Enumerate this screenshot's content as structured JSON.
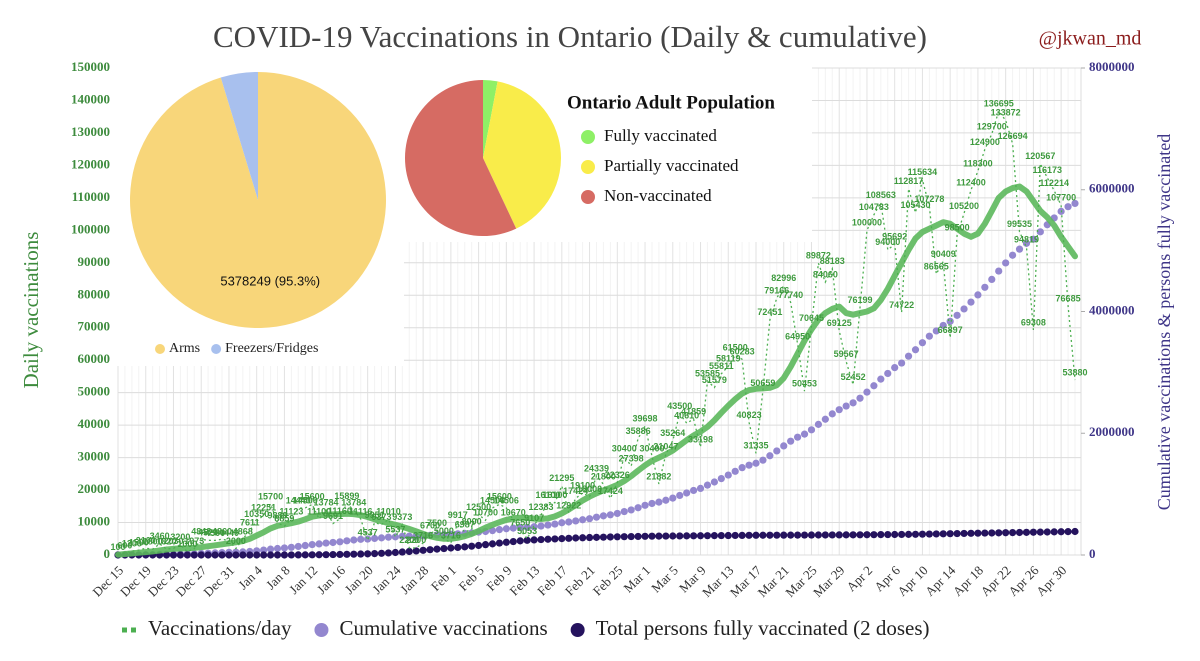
{
  "chart_data": [
    {
      "type": "line",
      "title": "COVID-19 Vaccinations in Ontario (Daily & cumulative)",
      "annotation": "@jkwan_md",
      "ylabel": "Daily vaccinations",
      "y2label": "Cumulative vaccinations & persons fully vaccinated",
      "categories": [
        "Dec 15",
        null,
        null,
        null,
        "Dec 19",
        null,
        null,
        null,
        "Dec 23",
        null,
        null,
        null,
        "Dec 27",
        null,
        null,
        null,
        "Dec 31",
        null,
        null,
        null,
        "Jan 4",
        null,
        null,
        null,
        "Jan 8",
        null,
        null,
        null,
        "Jan 12",
        null,
        null,
        null,
        "Jan 16",
        null,
        null,
        null,
        "Jan 20",
        null,
        null,
        null,
        "Jan 24",
        null,
        null,
        null,
        "Jan 28",
        null,
        null,
        null,
        "Feb 1",
        null,
        null,
        null,
        "Feb 5",
        null,
        null,
        null,
        "Feb 9",
        null,
        null,
        null,
        "Feb 13",
        null,
        null,
        null,
        "Feb 17",
        null,
        null,
        null,
        "Feb 21",
        null,
        null,
        null,
        "Feb 25",
        null,
        null,
        null,
        "Mar 1",
        null,
        null,
        null,
        "Mar 5",
        null,
        null,
        null,
        "Mar 9",
        null,
        null,
        null,
        "Mar 13",
        null,
        null,
        null,
        "Mar 17",
        null,
        null,
        null,
        "Mar 21",
        null,
        null,
        null,
        "Mar 25",
        null,
        null,
        null,
        "Mar 29",
        null,
        null,
        null,
        "Apr 2",
        null,
        null,
        null,
        "Apr 6",
        null,
        null,
        null,
        "Apr 10",
        null,
        null,
        null,
        "Apr 14",
        null,
        null,
        null,
        "Apr 18",
        null,
        null,
        null,
        "Apr 22",
        null,
        null,
        null,
        "Apr 26",
        null,
        null,
        null,
        "Apr 30",
        null,
        null
      ],
      "series": [
        {
          "name": "Vaccinations/day",
          "color": "#4caf50",
          "mark": "dashed-line",
          "data_labels": true,
          "values": [
            100,
            600,
            1200,
            1500,
            2100,
            1800,
            3460,
            1820,
            2030,
            3200,
            1000,
            1973,
            4848,
            4520,
            4500,
            4860,
            4440,
            2000,
            4868,
            7611,
            10350,
            12251,
            15700,
            9889,
            8859,
            11123,
            14440,
            14500,
            15600,
            11100,
            13784,
            9691,
            11160,
            15899,
            13784,
            11116,
            4537,
            9951,
            9373,
            11010,
            5537,
            9373,
            2200,
            2200,
            3716,
            6700,
            7500,
            5000,
            3716,
            9917,
            6987,
            8000,
            12500,
            10700,
            14506,
            15600,
            14506,
            10670,
            7650,
            5053,
            9107,
            12383,
            16100,
            16100,
            21295,
            12922,
            17424,
            19100,
            18000,
            24339,
            21800,
            17424,
            22326,
            30400,
            27398,
            35886,
            39698,
            30400,
            21882,
            31047,
            35264,
            43500,
            40610,
            41859,
            33198,
            53585,
            51579,
            55811,
            58119,
            61500,
            60283,
            40823,
            31335,
            50659,
            72451,
            79166,
            82996,
            77740,
            64950,
            50453,
            70645,
            89872,
            84060,
            88183,
            69125,
            59567,
            52452,
            76199,
            100000,
            104783,
            108563,
            94000,
            95692,
            74722,
            112817,
            105430,
            115634,
            107278,
            86565,
            90409,
            66897,
            98500,
            105200,
            112400,
            118300,
            124900,
            129700,
            136695,
            133872,
            126694,
            99535,
            94819,
            69308,
            120567,
            116173,
            112214,
            107700,
            76685,
            53880
          ]
        },
        {
          "color": "#5cb85c",
          "mark": "thick-line",
          "values": [
            100,
            300,
            500,
            700,
            900,
            1100,
            1400,
            1700,
            1900,
            2000,
            2100,
            2200,
            2400,
            2700,
            3000,
            3300,
            3600,
            3900,
            4300,
            5000,
            6000,
            7000,
            8200,
            9000,
            9400,
            9800,
            10300,
            11000,
            11800,
            12200,
            12400,
            12500,
            12600,
            12700,
            12600,
            12300,
            11700,
            11000,
            10400,
            9800,
            9300,
            8700,
            8000,
            7300,
            6500,
            5800,
            5300,
            5000,
            5000,
            5300,
            5800,
            6500,
            7400,
            8400,
            9300,
            10100,
            10800,
            11300,
            11500,
            11400,
            11200,
            11100,
            11300,
            11900,
            12800,
            14000,
            15400,
            16800,
            18000,
            19000,
            19900,
            20700,
            21600,
            22800,
            24300,
            26000,
            27600,
            29000,
            30000,
            31000,
            32200,
            33800,
            35400,
            36800,
            38000,
            39500,
            41500,
            43800,
            46000,
            48000,
            49700,
            50800,
            51200,
            51300,
            51500,
            52300,
            54500,
            58000,
            62000,
            66000,
            69500,
            72500,
            74500,
            75800,
            76500,
            74500,
            74000,
            74500,
            75000,
            76000,
            78500,
            82000,
            86000,
            90000,
            94000,
            97500,
            99500,
            100500,
            101500,
            102500,
            102000,
            100500,
            99000,
            98000,
            99000,
            102000,
            106000,
            110000,
            112000,
            113000,
            113500,
            112000,
            109000,
            106000,
            104000,
            101500,
            98000,
            95000,
            92000
          ]
        },
        {
          "name": "Cumulative vaccinations",
          "color": "#9387cf",
          "mark": "dots",
          "axis": "y2",
          "values": [
            100,
            700,
            1900,
            3400,
            5500,
            7300,
            10800,
            12600,
            14600,
            17800,
            18800,
            20800,
            25600,
            30100,
            34600,
            39500,
            43900,
            45900,
            50800,
            58400,
            68700,
            81000,
            96700,
            106600,
            115400,
            126500,
            141000,
            155500,
            171100,
            182200,
            196000,
            205700,
            216800,
            232700,
            246500,
            257600,
            262200,
            272100,
            281500,
            292500,
            298000,
            307400,
            309600,
            311800,
            315500,
            322200,
            329700,
            334700,
            338400,
            348300,
            355300,
            363300,
            375800,
            386500,
            401000,
            416600,
            431100,
            441800,
            449400,
            454500,
            463600,
            476000,
            492100,
            508200,
            529500,
            542400,
            559800,
            578900,
            596900,
            621300,
            643100,
            660500,
            682800,
            713200,
            740600,
            776500,
            816200,
            846600,
            868500,
            899500,
            934800,
            978300,
            1018900,
            1060800,
            1094000,
            1147600,
            1199200,
            1255000,
            1313100,
            1374600,
            1434900,
            1475700,
            1507000,
            1557700,
            1630200,
            1709300,
            1792300,
            1870000,
            1935000,
            1985400,
            2056100,
            2146000,
            2230000,
            2318200,
            2387300,
            2446900,
            2499300,
            2575500,
            2675500,
            2780300,
            2888900,
            2982900,
            3078600,
            3153300,
            3266100,
            3371500,
            3487200,
            3594400,
            3681000,
            3771400,
            3838300,
            3936800,
            4042000,
            4154400,
            4272700,
            4397600,
            4527300,
            4664000,
            4797900,
            4924600,
            5024100,
            5118900,
            5188200,
            5308800,
            5425000,
            5537200,
            5644900,
            5721600,
            5775500
          ]
        },
        {
          "name": "Total persons fully vaccinated (2 doses)",
          "color": "#25135e",
          "mark": "dots",
          "axis": "y2",
          "values": [
            0,
            0,
            0,
            0,
            0,
            0,
            0,
            0,
            0,
            0,
            0,
            0,
            0,
            0,
            0,
            0,
            0,
            0,
            0,
            0,
            0,
            10,
            100,
            300,
            600,
            1000,
            1500,
            2200,
            3000,
            4000,
            5500,
            7000,
            9000,
            11000,
            13500,
            16000,
            19000,
            23000,
            28000,
            34000,
            41000,
            49000,
            58000,
            67000,
            77000,
            87000,
            97000,
            106000,
            115000,
            124000,
            134000,
            145000,
            157000,
            170000,
            183000,
            196000,
            209000,
            221000,
            232000,
            241000,
            248000,
            254000,
            259000,
            264000,
            269000,
            274000,
            279000,
            283000,
            287000,
            290000,
            293000,
            296000,
            299000,
            301000,
            303000,
            305000,
            307000,
            309000,
            310000,
            311000,
            312000,
            313000,
            314000,
            315000,
            316000,
            317000,
            318000,
            319000,
            320000,
            321000,
            322000,
            323000,
            324000,
            324500,
            325000,
            325500,
            326000,
            326500,
            327000,
            327500,
            328000,
            328500,
            329000,
            329500,
            330000,
            330500,
            331000,
            332000,
            333000,
            334000,
            335000,
            336000,
            337000,
            338000,
            339000,
            340000,
            342000,
            344000,
            346000,
            348000,
            350000,
            352000,
            354000,
            356000,
            358000,
            360000,
            362000,
            364000,
            366000,
            368000,
            370000,
            372000,
            374000,
            376000,
            378000,
            380000,
            382000,
            384000,
            386000
          ]
        }
      ],
      "ylim": [
        0,
        150000
      ],
      "yticks": [
        0,
        10000,
        20000,
        30000,
        40000,
        50000,
        60000,
        70000,
        80000,
        90000,
        100000,
        110000,
        120000,
        130000,
        140000,
        150000
      ],
      "y2lim": [
        0,
        8000000
      ],
      "y2ticks": [
        0,
        2000000,
        4000000,
        6000000,
        8000000
      ],
      "grid": true,
      "legend": "bottom"
    },
    {
      "type": "pie",
      "categories": [
        "Arms",
        "Freezers/Fridges"
      ],
      "values": [
        5378249,
        265000
      ],
      "value_labels": [
        "5378249 (95.3%)",
        null
      ],
      "colors": [
        "#f8d67a",
        "#a8c0ee"
      ],
      "legend": "bottom"
    },
    {
      "type": "pie",
      "title": "Ontario Adult Population",
      "categories": [
        "Fully vaccinated",
        "Partially vaccinated",
        "Non-vaccinated"
      ],
      "values": [
        3,
        40,
        57
      ],
      "colors": [
        "#8ef066",
        "#f9ec4a",
        "#d66b63"
      ],
      "legend": "right"
    }
  ]
}
